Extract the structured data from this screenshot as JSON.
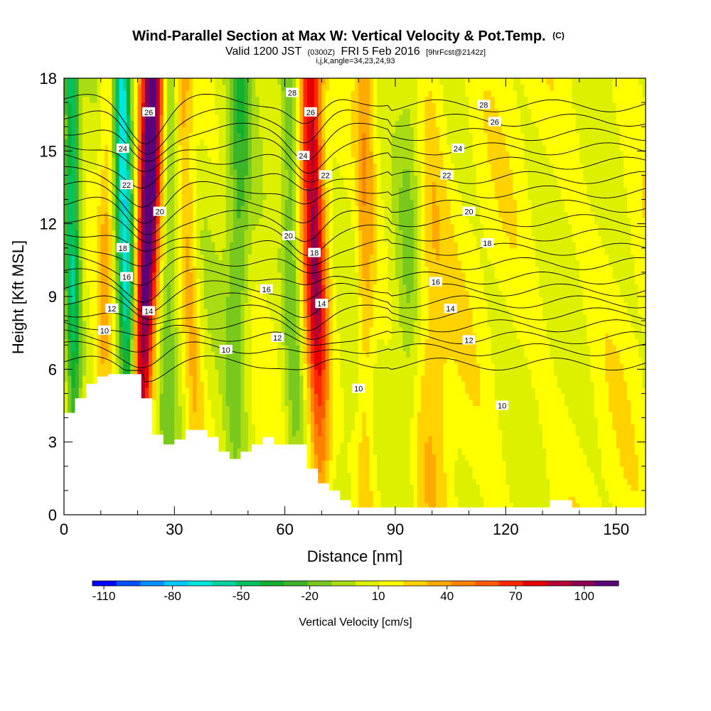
{
  "chart_data": {
    "type": "heatmap",
    "title": "Wind-Parallel Section at Max W: Vertical Velocity & Pot.Temp.",
    "copyright": "(C)",
    "subtitle_main": "Valid 1200 JST",
    "subtitle_utc": "(0300Z)",
    "subtitle_date": "FRI 5 Feb 2016",
    "subtitle_fcst": "[9hrFcst@2142z]",
    "subtitle_params": "i,j,k,angle=34,23,24,93",
    "xlabel": "Distance [nm]",
    "ylabel": "Height [Kft MSL]",
    "xlim": [
      0,
      158
    ],
    "ylim": [
      0,
      18
    ],
    "xticks": [
      "0",
      "30",
      "60",
      "90",
      "120",
      "150"
    ],
    "yticks": [
      "0",
      "3",
      "6",
      "9",
      "12",
      "15",
      "18"
    ],
    "xtick_values": [
      0,
      30,
      60,
      90,
      120,
      150
    ],
    "ytick_values": [
      0,
      3,
      6,
      9,
      12,
      15,
      18
    ],
    "colorbar": {
      "label": "Vertical Velocity [cm/s]",
      "tick_labels": [
        "-110",
        "-80",
        "-50",
        "-20",
        "10",
        "40",
        "70",
        "100"
      ],
      "tick_values": [
        -110,
        -80,
        -50,
        -20,
        10,
        40,
        70,
        100
      ],
      "range": [
        -115,
        115
      ],
      "colors": [
        "#0000ff",
        "#0050ff",
        "#0090ff",
        "#00c8ff",
        "#00e6dc",
        "#00d2a0",
        "#00c060",
        "#10b030",
        "#3cb428",
        "#78c81e",
        "#aadc14",
        "#dcf000",
        "#ffff00",
        "#ffd200",
        "#ffaa00",
        "#ff8200",
        "#ff5a00",
        "#ff2800",
        "#e60000",
        "#b40032",
        "#8c0050",
        "#5a0078"
      ]
    },
    "updrafts": [
      {
        "x_bottom": 20,
        "x_top": 24,
        "width": 3,
        "peak": 110
      },
      {
        "x_bottom": 70,
        "x_top": 67,
        "width": 3,
        "peak": 80
      },
      {
        "x_bottom": 37,
        "x_top": 32,
        "width": 2.5,
        "peak": 30
      },
      {
        "x_bottom": 82,
        "x_top": 82,
        "width": 2.5,
        "peak": 25
      },
      {
        "x_bottom": 100,
        "x_top": 98,
        "width": 5,
        "peak": 22
      },
      {
        "x_bottom": 10,
        "x_top": 12,
        "width": 2,
        "peak": 22
      }
    ],
    "downdrafts": [
      {
        "x_bottom": 18,
        "x_top": 16,
        "width": 2.5,
        "peak": -80
      },
      {
        "x_bottom": 3,
        "x_top": 2,
        "width": 2,
        "peak": -55
      },
      {
        "x_bottom": 46,
        "x_top": 48,
        "width": 3,
        "peak": -30
      },
      {
        "x_bottom": 63,
        "x_top": 61,
        "width": 2.5,
        "peak": -30
      },
      {
        "x_bottom": 28,
        "x_top": 29,
        "width": 2.5,
        "peak": -25
      },
      {
        "x_bottom": 93,
        "x_top": 95,
        "width": 4,
        "peak": -25
      }
    ],
    "isentropes": {
      "name": "Pot.Temp.",
      "levels": [
        10,
        11,
        12,
        13,
        14,
        15,
        16,
        17,
        18,
        19,
        20,
        21,
        22,
        23,
        24,
        25,
        26,
        27,
        28,
        29
      ],
      "base_height": [
        6.3,
        6.9,
        7.4,
        7.9,
        8.4,
        8.9,
        9.4,
        9.9,
        10.5,
        11.1,
        11.7,
        12.3,
        12.9,
        13.5,
        14.1,
        14.7,
        15.3,
        15.9,
        16.5,
        17.1
      ],
      "labels": [
        {
          "text": "10",
          "x": 11,
          "y": 7.6
        },
        {
          "text": "12",
          "x": 13,
          "y": 8.5
        },
        {
          "text": "14",
          "x": 23,
          "y": 8.4
        },
        {
          "text": "16",
          "x": 17,
          "y": 9.8
        },
        {
          "text": "18",
          "x": 16,
          "y": 11
        },
        {
          "text": "22",
          "x": 17,
          "y": 13.6
        },
        {
          "text": "24",
          "x": 16,
          "y": 15.1
        },
        {
          "text": "26",
          "x": 23,
          "y": 16.6
        },
        {
          "text": "20",
          "x": 26,
          "y": 12.5
        },
        {
          "text": "10",
          "x": 44,
          "y": 6.8
        },
        {
          "text": "12",
          "x": 58,
          "y": 7.3
        },
        {
          "text": "16",
          "x": 55,
          "y": 9.3
        },
        {
          "text": "20",
          "x": 61,
          "y": 11.5
        },
        {
          "text": "14",
          "x": 70,
          "y": 8.7
        },
        {
          "text": "18",
          "x": 68,
          "y": 10.8
        },
        {
          "text": "24",
          "x": 65,
          "y": 14.8
        },
        {
          "text": "22",
          "x": 71,
          "y": 14
        },
        {
          "text": "26",
          "x": 67,
          "y": 16.6
        },
        {
          "text": "28",
          "x": 62,
          "y": 17.4
        },
        {
          "text": "10",
          "x": 80,
          "y": 5.2
        },
        {
          "text": "12",
          "x": 110,
          "y": 7.2
        },
        {
          "text": "10",
          "x": 119,
          "y": 4.5
        },
        {
          "text": "14",
          "x": 105,
          "y": 8.5
        },
        {
          "text": "16",
          "x": 101,
          "y": 9.6
        },
        {
          "text": "18",
          "x": 115,
          "y": 11.2
        },
        {
          "text": "20",
          "x": 110,
          "y": 12.5
        },
        {
          "text": "22",
          "x": 104,
          "y": 14
        },
        {
          "text": "24",
          "x": 107,
          "y": 15.1
        },
        {
          "text": "26",
          "x": 117,
          "y": 16.2
        },
        {
          "text": "28",
          "x": 114,
          "y": 16.9
        }
      ]
    },
    "terrain": {
      "x": [
        0,
        3,
        3,
        6,
        6,
        9,
        9,
        12,
        12,
        15,
        15,
        21,
        21,
        24,
        24,
        27,
        27,
        30,
        30,
        33,
        33,
        39,
        39,
        42,
        42,
        45,
        45,
        48,
        48,
        51,
        51,
        54,
        54,
        57,
        57,
        66,
        66,
        69,
        69,
        72,
        72,
        75,
        75,
        78,
        78,
        84,
        84,
        132,
        132,
        138,
        138,
        158
      ],
      "y": [
        4.2,
        4.2,
        4.8,
        4.8,
        5.4,
        5.4,
        5.7,
        5.7,
        5.8,
        5.8,
        5.8,
        5.8,
        4.8,
        4.8,
        3.3,
        3.3,
        2.9,
        2.9,
        3.1,
        3.1,
        3.5,
        3.5,
        3.2,
        3.2,
        2.6,
        2.6,
        2.3,
        2.3,
        2.6,
        2.6,
        2.9,
        2.9,
        3.2,
        3.2,
        2.9,
        2.9,
        1.9,
        1.9,
        1.3,
        1.3,
        1.0,
        1.0,
        0.6,
        0.6,
        0.3,
        0.3,
        0.3,
        0.3,
        0.6,
        0.6,
        0.3,
        0.3
      ]
    }
  }
}
